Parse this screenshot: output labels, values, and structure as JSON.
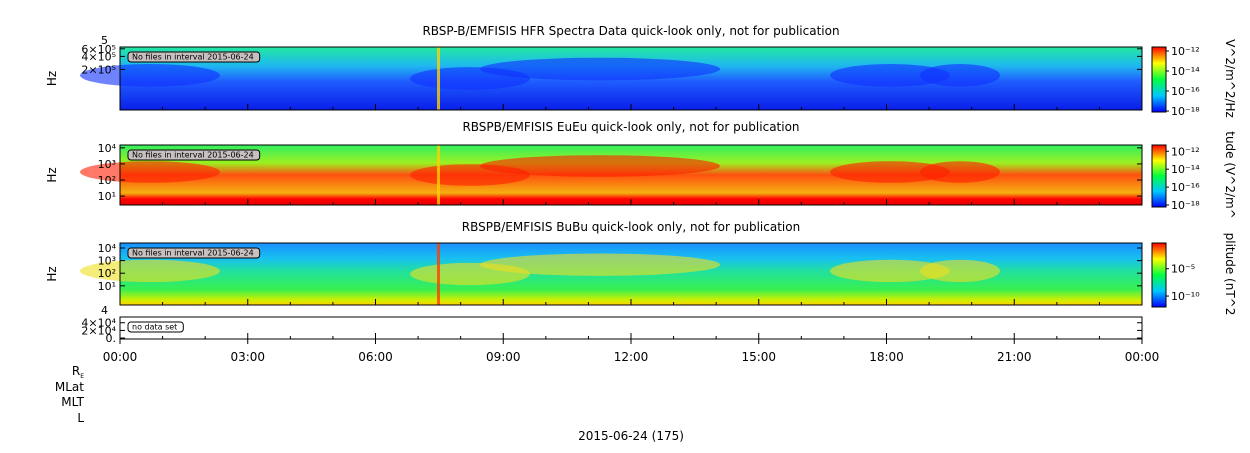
{
  "panels": [
    {
      "title": "RBSP-B/EMFISIS  HFR Spectra Data quick-look only, not for publication",
      "ylabel": "Hz",
      "yscale": "log",
      "ylim": [
        23000,
        660000
      ],
      "top_fragment": "5",
      "yticks": [
        {
          "value": 600000,
          "label": "6×10⁵"
        },
        {
          "value": 400000,
          "label": "4×10⁵"
        },
        {
          "value": 200000,
          "label": "2×10⁵"
        }
      ],
      "note": "No files in interval 2015-06-24",
      "colorbar": {
        "label": "V^2/m^2/Hz",
        "lim": [
          8e-19,
          2.5e-12
        ],
        "ticks": [
          {
            "value": 1e-12,
            "label": "10⁻¹²"
          },
          {
            "value": 1e-14,
            "label": "10⁻¹⁴"
          },
          {
            "value": 1e-16,
            "label": "10⁻¹⁶"
          },
          {
            "value": 1e-18,
            "label": "10⁻¹⁸"
          }
        ]
      }
    },
    {
      "title": "RBSPB/EMFISIS  EuEu quick-look only, not for publication",
      "ylabel": "Hz",
      "yscale": "log",
      "ylim": [
        2.8,
        15000
      ],
      "yticks": [
        {
          "value": 10000,
          "label": "10⁴"
        },
        {
          "value": 1000,
          "label": "10³"
        },
        {
          "value": 100,
          "label": "10²"
        },
        {
          "value": 10,
          "label": "10¹"
        }
      ],
      "note": "No files in interval 2015-06-24",
      "colorbar": {
        "label": "tude (V^2/m^",
        "lim": [
          6e-19,
          5e-12
        ],
        "ticks": [
          {
            "value": 1e-12,
            "label": "10⁻¹²"
          },
          {
            "value": 1e-14,
            "label": "10⁻¹⁴"
          },
          {
            "value": 1e-16,
            "label": "10⁻¹⁶"
          },
          {
            "value": 1e-18,
            "label": "10⁻¹⁸"
          }
        ]
      }
    },
    {
      "title": "RBSPB/EMFISIS  BuBu quick-look only, not for publication",
      "ylabel": "Hz",
      "yscale": "log",
      "ylim": [
        0.3,
        25000
      ],
      "yticks": [
        {
          "value": 10000,
          "label": "10⁴"
        },
        {
          "value": 1000,
          "label": "10³"
        },
        {
          "value": 100,
          "label": "10²"
        },
        {
          "value": 10,
          "label": "10¹"
        }
      ],
      "note": "No files in interval 2015-06-24",
      "colorbar": {
        "label": "plitude (nT^2",
        "lim": [
          1e-12,
          0.5
        ],
        "ticks": [
          {
            "value": 1e-05,
            "label": "10⁻⁵"
          },
          {
            "value": 1e-10,
            "label": "10⁻¹⁰"
          }
        ]
      }
    },
    {
      "yscale": "linear",
      "ylim": [
        -2500,
        55000
      ],
      "top_fragment": "4",
      "yticks": [
        {
          "value": 40000,
          "label": "4×10⁴"
        },
        {
          "value": 20000,
          "label": "2×10⁴"
        },
        {
          "value": 0,
          "label": "0."
        }
      ],
      "note": "no data set"
    }
  ],
  "xaxis": {
    "xlim": [
      0,
      24
    ],
    "xticks": [
      {
        "value": 0,
        "label": "00:00"
      },
      {
        "value": 3,
        "label": "03:00"
      },
      {
        "value": 6,
        "label": "06:00"
      },
      {
        "value": 9,
        "label": "09:00"
      },
      {
        "value": 12,
        "label": "12:00"
      },
      {
        "value": 15,
        "label": "15:00"
      },
      {
        "value": 18,
        "label": "18:00"
      },
      {
        "value": 21,
        "label": "21:00"
      },
      {
        "value": 24,
        "label": "00:00"
      }
    ],
    "ephemeris": [
      {
        "label": "R",
        "sub": "E"
      },
      {
        "label": "MLat"
      },
      {
        "label": "MLT"
      },
      {
        "label": "L"
      }
    ],
    "date_label": "2015-06-24 (175)"
  }
}
